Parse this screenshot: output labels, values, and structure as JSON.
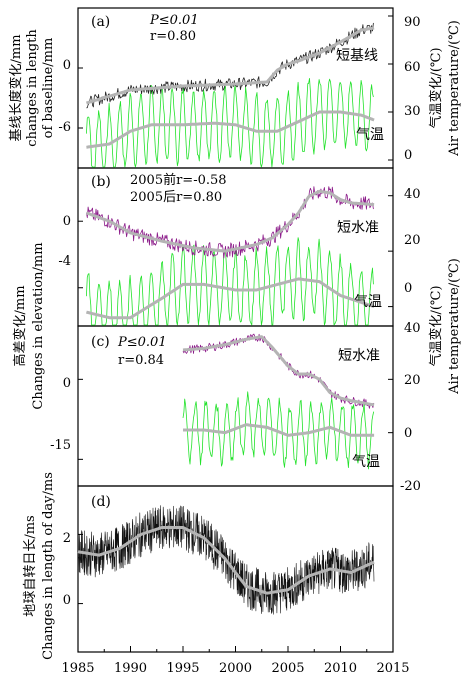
{
  "colors": {
    "baseline": "#222222",
    "leveling": "#8b1a89",
    "air_temperature": "#22e22a",
    "smooth": "#b4b4b4",
    "lod": "#111111"
  },
  "chart_data": [
    {
      "type": "line",
      "panel": "(a)",
      "annotations": [
        "P≤0.01",
        "r=0.80"
      ],
      "series_labels": [
        "短基线",
        "气温"
      ],
      "left_axis": {
        "title_lines": [
          "基线长度变化/mm",
          "changes in length",
          "of baseline/mm"
        ],
        "ticks": [
          "0",
          "-6"
        ],
        "tick_values": [
          0,
          -6
        ],
        "ylim": [
          -10,
          6
        ]
      },
      "right_axis": {
        "title_lines": [
          "气温变化/(℃)",
          "Air temperature/(℃)"
        ],
        "ticks": [
          "90",
          "60",
          "30",
          "0"
        ],
        "tick_values": [
          90,
          60,
          30,
          0
        ],
        "ylim": [
          -5,
          95
        ]
      },
      "series": [
        {
          "name": "短基线",
          "axis": "left",
          "x": [
            1985.8,
            1990,
            1995,
            2000,
            2003,
            2004,
            2005,
            2006,
            2008,
            2010,
            2011,
            2012,
            2013.2
          ],
          "y": [
            -3.5,
            -2.2,
            -1.8,
            -1.6,
            -1.4,
            -0.2,
            0.4,
            0.7,
            1.5,
            2.6,
            3.2,
            3.8,
            4.0
          ]
        },
        {
          "name": "气温",
          "axis": "right",
          "x": [
            1985.8,
            1988,
            1990,
            1992,
            1995,
            1998,
            2000,
            2002,
            2004,
            2006,
            2008,
            2010,
            2012,
            2013.2
          ],
          "y": [
            8,
            10,
            18,
            22,
            22,
            23,
            22,
            18,
            18,
            24,
            30,
            30,
            28,
            25
          ]
        }
      ]
    },
    {
      "type": "line",
      "panel": "(b)",
      "annotations": [
        "2005前r=-0.58",
        "2005后r=0.80"
      ],
      "series_labels": [
        "短水准",
        "气温"
      ],
      "left_axis": {
        "ticks": [
          "0",
          "-4"
        ],
        "tick_values": [
          0,
          -4
        ],
        "ylim": [
          -6.3,
          3.2
        ]
      },
      "right_axis": {
        "ticks": [
          "40",
          "20",
          "0"
        ],
        "tick_values": [
          40,
          20,
          0
        ],
        "ylim": [
          -7,
          50
        ]
      },
      "series": [
        {
          "name": "短水准",
          "axis": "left",
          "x": [
            1985.8,
            1988,
            1990,
            1993,
            1996,
            1999,
            2002,
            2003.5,
            2005,
            2006,
            2007,
            2008,
            2009,
            2010,
            2011,
            2013.2
          ],
          "y": [
            0.5,
            0,
            -0.7,
            -1.2,
            -1.6,
            -1.8,
            -1.4,
            -1.0,
            -0.2,
            0.5,
            1.5,
            1.8,
            1.7,
            1.3,
            1.1,
            1.0
          ]
        },
        {
          "name": "气温",
          "axis": "right",
          "x": [
            1985.8,
            1988,
            1990,
            1993,
            1995,
            1997,
            2000,
            2002,
            2004,
            2006,
            2008,
            2010,
            2013.2
          ],
          "y": [
            -2,
            -4,
            -4,
            3,
            8,
            8,
            6,
            6,
            8,
            10,
            9,
            4,
            0
          ]
        }
      ]
    },
    {
      "type": "line",
      "panel": "(c)",
      "annotations": [
        "P≤0.01",
        "r=0.84"
      ],
      "series_labels": [
        "短水准",
        "气温"
      ],
      "left_axis": {
        "title_lines": [
          "高差变化/mm",
          "Changes in elevation/mm"
        ],
        "ticks": [
          "0",
          "-15"
        ],
        "tick_values": [
          0,
          -15
        ],
        "ylim": [
          -20,
          10
        ]
      },
      "right_axis": {
        "title_lines": [
          "气温变化/(℃)",
          "Air temperature/(℃)"
        ],
        "ticks": [
          "40",
          "20",
          "0",
          "-20"
        ],
        "tick_values": [
          40,
          20,
          0,
          -20
        ],
        "ylim": [
          -20,
          40
        ]
      },
      "series": [
        {
          "name": "短水准",
          "axis": "left",
          "x": [
            1995,
            1997,
            1999,
            2001,
            2002.5,
            2003.5,
            2005,
            2006,
            2007,
            2008,
            2009,
            2010,
            2011,
            2013.2
          ],
          "y": [
            5.5,
            5.8,
            6.5,
            7.5,
            8.0,
            6.0,
            2.5,
            1.0,
            1.0,
            0,
            -2.5,
            -3.5,
            -4.0,
            -4.8
          ]
        },
        {
          "name": "气温",
          "axis": "right",
          "x": [
            1995,
            1997,
            1999,
            2001,
            2003,
            2005,
            2007,
            2009,
            2011,
            2013.2
          ],
          "y": [
            1,
            1,
            0,
            3,
            2,
            -1,
            0,
            2,
            -1,
            -1
          ]
        }
      ]
    },
    {
      "type": "line",
      "panel": "(d)",
      "left_axis": {
        "title_lines": [
          "地球自转日长/ms",
          "Changes in length of day/ms"
        ],
        "ticks": [
          "2",
          "0"
        ],
        "tick_values": [
          2,
          0
        ],
        "ylim": [
          -1.4,
          3.4
        ]
      },
      "x_axis": {
        "ticks": [
          "1985",
          "1990",
          "1995",
          "2000",
          "2005",
          "2010",
          "2015"
        ],
        "tick_values": [
          1985,
          1990,
          1995,
          2000,
          2005,
          2010,
          2015
        ],
        "xlim": [
          1985,
          2015
        ]
      },
      "series": [
        {
          "name": "日长",
          "axis": "left",
          "x": [
            1985,
            1987,
            1989,
            1991,
            1993,
            1995,
            1997,
            1999,
            2001,
            2003,
            2005,
            2007,
            2009,
            2011,
            2013.2
          ],
          "y": [
            1.5,
            1.4,
            1.6,
            2.0,
            2.2,
            2.2,
            1.9,
            1.3,
            0.5,
            0.3,
            0.4,
            0.8,
            1.0,
            0.9,
            1.2
          ]
        }
      ]
    }
  ]
}
